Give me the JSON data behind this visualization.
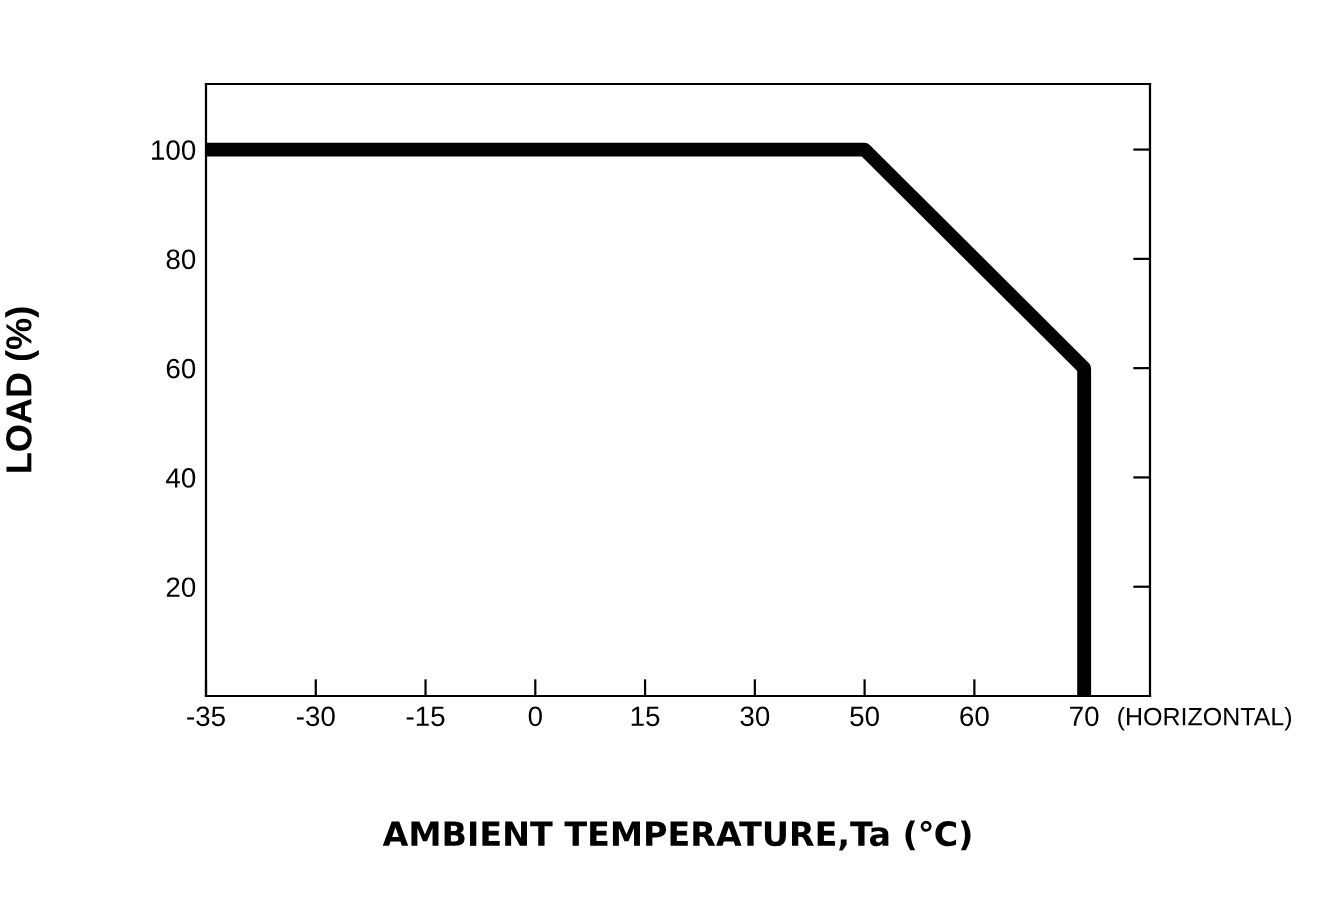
{
  "chart_data": {
    "type": "line",
    "xlabel": "AMBIENT TEMPERATURE,Ta (℃)",
    "ylabel": "LOAD (%)",
    "categories": [
      "-35",
      "-30",
      "-15",
      "0",
      "15",
      "30",
      "50",
      "60",
      "70"
    ],
    "series": [
      {
        "x": [
          "-35",
          "50",
          "70",
          "70"
        ],
        "values": [
          100,
          100,
          60,
          0
        ],
        "color": "#000000"
      }
    ],
    "ylim": [
      0,
      112
    ],
    "yticks": [
      20,
      40,
      60,
      80,
      100
    ],
    "grid": false,
    "legend": false,
    "marker": "none",
    "line_style": "solid",
    "annotations": [
      "(HORIZONTAL)"
    ]
  }
}
